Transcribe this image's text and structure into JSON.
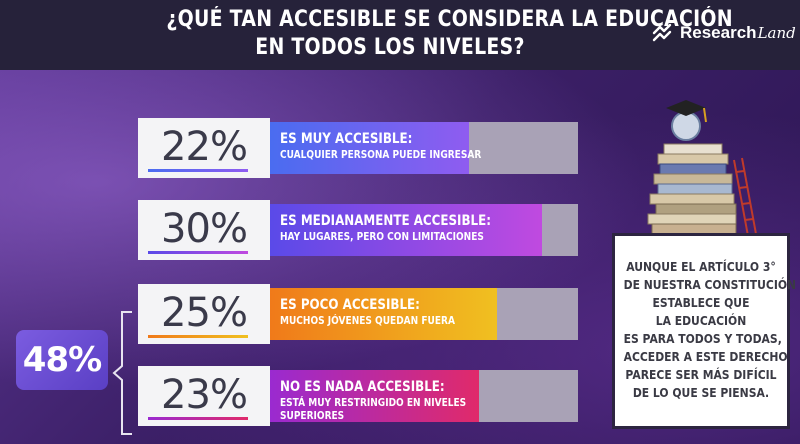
{
  "header": {
    "title_line1": "¿QUÉ TAN ACCESIBLE SE CONSIDERA LA EDUCACIÓN",
    "title_line2": "EN TODOS LOS NIVELES?",
    "logo_text": "Research",
    "logo_script": "Land"
  },
  "chart_data": {
    "type": "bar",
    "orientation": "horizontal",
    "categories": [
      "ES MUY ACCESIBLE:",
      "ES MEDIANAMENTE ACCESIBLE:",
      "ES POCO ACCESIBLE:",
      "NO ES NADA ACCESIBLE:"
    ],
    "values": [
      22,
      30,
      25,
      23
    ],
    "value_labels": [
      "22%",
      "30%",
      "25%",
      "23%"
    ],
    "subtitles": [
      "CUALQUIER PERSONA PUEDE INGRESAR",
      "HAY LUGARES, PERO CON LIMITACIONES",
      "MUCHOS JÓVENES QUEDAN FUERA",
      "ESTÁ MUY RESTRINGIDO EN NIVELES SUPERIORES"
    ],
    "subtitle_lines": [
      [
        "CUALQUIER PERSONA PUEDE INGRESAR"
      ],
      [
        "HAY LUGARES, PERO CON LIMITACIONES"
      ],
      [
        "MUCHOS JÓVENES QUEDAN FUERA"
      ],
      [
        "ESTÁ MUY RESTRINGIDO EN NIVELES",
        "SUPERIORES"
      ]
    ],
    "fill_colors": [
      [
        "#4a6cf0",
        "#8f5cf0"
      ],
      [
        "#5a4ae8",
        "#c04ae0"
      ],
      [
        "#f07a1a",
        "#f0c020"
      ],
      [
        "#9a2ad0",
        "#e02a6a"
      ]
    ],
    "xlim": [
      0,
      30
    ],
    "summary": {
      "label": "48%",
      "covers": [
        "ES POCO ACCESIBLE:",
        "NO ES NADA ACCESIBLE:"
      ]
    }
  },
  "note": {
    "lines": [
      "AUNQUE EL ARTÍCULO 3°",
      "DE NUESTRA CONSTITUCIÓN",
      "ESTABLECE QUE",
      "LA EDUCACIÓN",
      "ES PARA TODOS Y TODAS,",
      "ACCEDER A ESTE DERECHO",
      "PARECE SER MÁS DIFÍCIL",
      "DE LO QUE SE PIENSA."
    ]
  },
  "colors": {
    "header_bg": "#26223a",
    "accent_purple": "#6a4fd0",
    "track": "#a9a2b6"
  }
}
